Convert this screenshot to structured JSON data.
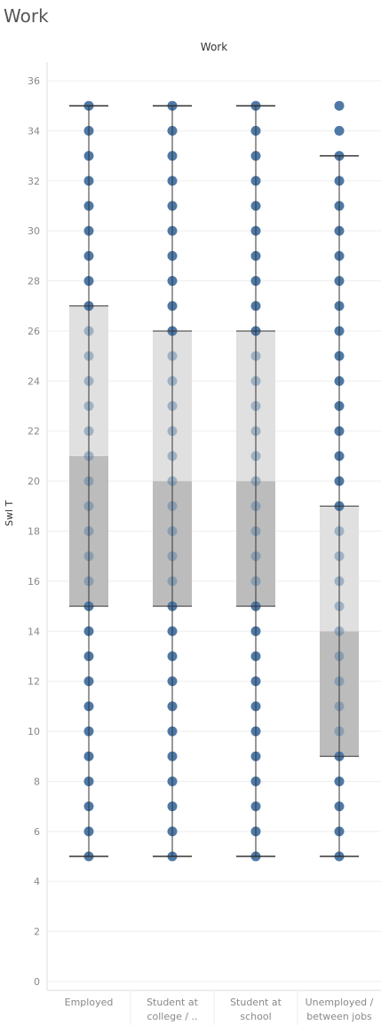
{
  "sheet_title": "Work",
  "chart_data": {
    "type": "box-plot",
    "title": "Work",
    "ylabel": "Swl T",
    "ylim": [
      0,
      36
    ],
    "yticks": [
      0,
      2,
      4,
      6,
      8,
      10,
      12,
      14,
      16,
      18,
      20,
      22,
      24,
      26,
      28,
      30,
      32,
      34,
      36
    ],
    "grid": true,
    "categories": [
      {
        "label_lines": [
          "Employed"
        ],
        "min": 5,
        "q1": 15,
        "median": 21,
        "q3": 27,
        "max": 35,
        "points": [
          5,
          6,
          7,
          8,
          9,
          10,
          11,
          12,
          13,
          14,
          15,
          16,
          17,
          18,
          19,
          20,
          21,
          22,
          23,
          24,
          25,
          26,
          27,
          28,
          29,
          30,
          31,
          32,
          33,
          34,
          35
        ]
      },
      {
        "label_lines": [
          "Student at",
          "college / .."
        ],
        "min": 5,
        "q1": 15,
        "median": 20,
        "q3": 26,
        "max": 35,
        "points": [
          5,
          6,
          7,
          8,
          9,
          10,
          11,
          12,
          13,
          14,
          15,
          16,
          17,
          18,
          19,
          20,
          21,
          22,
          23,
          24,
          25,
          26,
          27,
          28,
          29,
          30,
          31,
          32,
          33,
          34,
          35
        ]
      },
      {
        "label_lines": [
          "Student at",
          "school"
        ],
        "min": 5,
        "q1": 15,
        "median": 20,
        "q3": 26,
        "max": 35,
        "points": [
          5,
          6,
          7,
          8,
          9,
          10,
          11,
          12,
          13,
          14,
          15,
          16,
          17,
          18,
          19,
          20,
          21,
          22,
          23,
          24,
          25,
          26,
          27,
          28,
          29,
          30,
          31,
          32,
          33,
          34,
          35
        ]
      },
      {
        "label_lines": [
          "Unemployed /",
          "between jobs"
        ],
        "min": 5,
        "q1": 9,
        "median": 14,
        "q3": 19,
        "max": 33,
        "points": [
          5,
          6,
          7,
          8,
          9,
          10,
          11,
          12,
          13,
          14,
          15,
          16,
          17,
          18,
          19,
          20,
          21,
          22,
          23,
          24,
          25,
          26,
          27,
          28,
          29,
          30,
          31,
          32,
          33,
          34,
          35
        ]
      }
    ],
    "colors": {
      "point": "#4e79a7",
      "box_lower": "#bcbcbc",
      "box_upper": "#e0e0e0",
      "whisker": "#333333",
      "gridline": "#eeeeee"
    }
  }
}
